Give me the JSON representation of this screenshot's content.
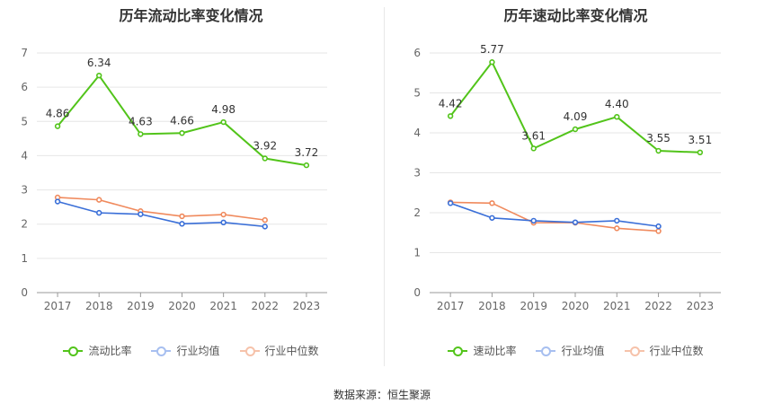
{
  "source_text": "数据来源：恒生聚源",
  "chart_data": [
    {
      "type": "line",
      "title": "历年流动比率变化情况",
      "categories": [
        "2017",
        "2018",
        "2019",
        "2020",
        "2021",
        "2022",
        "2023"
      ],
      "ylim": [
        0,
        7
      ],
      "yticks": [
        0,
        1,
        2,
        3,
        4,
        5,
        6,
        7
      ],
      "grid": true,
      "legend_position": "bottom",
      "series": [
        {
          "name": "流动比率",
          "color": "#52c41a",
          "values": [
            4.86,
            6.34,
            4.63,
            4.66,
            4.98,
            3.92,
            3.72
          ],
          "labels": [
            "4.86",
            "6.34",
            "4.63",
            "4.66",
            "4.98",
            "3.92",
            "3.72"
          ]
        },
        {
          "name": "行业均值",
          "color": "#3a6fd8",
          "values": [
            2.66,
            2.33,
            2.29,
            2.01,
            2.05,
            1.93,
            null
          ]
        },
        {
          "name": "行业中位数",
          "color": "#f08a5d",
          "values": [
            2.78,
            2.71,
            2.38,
            2.23,
            2.28,
            2.12,
            null
          ]
        }
      ]
    },
    {
      "type": "line",
      "title": "历年速动比率变化情况",
      "categories": [
        "2017",
        "2018",
        "2019",
        "2020",
        "2021",
        "2022",
        "2023"
      ],
      "ylim": [
        0,
        6
      ],
      "yticks": [
        0,
        1,
        2,
        3,
        4,
        5,
        6
      ],
      "grid": true,
      "legend_position": "bottom",
      "series": [
        {
          "name": "速动比率",
          "color": "#52c41a",
          "values": [
            4.42,
            5.77,
            3.61,
            4.09,
            4.4,
            3.55,
            3.51
          ],
          "labels": [
            "4.42",
            "5.77",
            "3.61",
            "4.09",
            "4.40",
            "3.55",
            "3.51"
          ]
        },
        {
          "name": "行业均值",
          "color": "#3a6fd8",
          "values": [
            2.24,
            1.87,
            1.8,
            1.76,
            1.8,
            1.66,
            null
          ]
        },
        {
          "name": "行业中位数",
          "color": "#f08a5d",
          "values": [
            2.26,
            2.24,
            1.75,
            1.75,
            1.61,
            1.54,
            null
          ]
        }
      ]
    }
  ]
}
